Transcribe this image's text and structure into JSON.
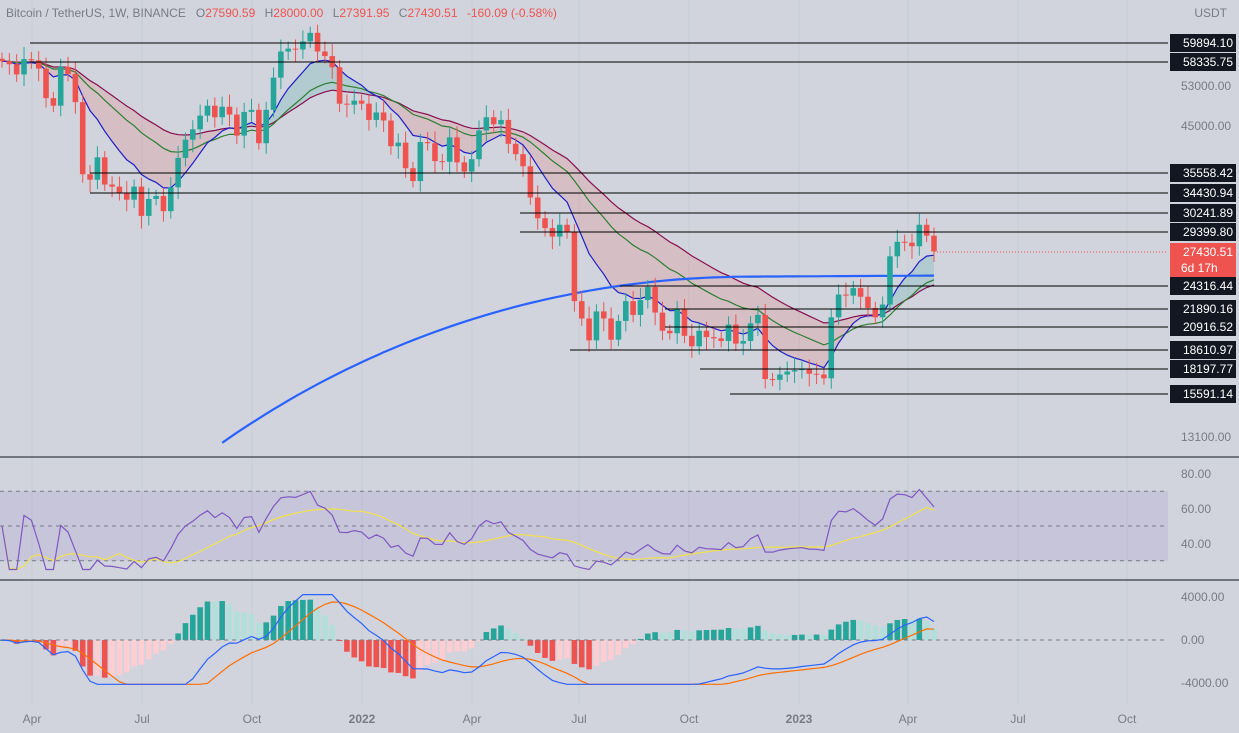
{
  "header": {
    "symbol": "Bitcoin / TetherUS, 1W, BINANCE",
    "o_label": "O",
    "o": "27590.59",
    "h_label": "H",
    "h": "28000.00",
    "l_label": "L",
    "l": "27391.95",
    "c_label": "C",
    "c": "27430.51",
    "change": "-160.09 (-0.58%)"
  },
  "currency": "USDT",
  "colors": {
    "up": "#26a69a",
    "down": "#ef5350",
    "ma200": "#2962ff",
    "ema_fast": "#1e1ec8",
    "ema_mid": "#2e7d32",
    "ema_slow": "#880e4f",
    "rsi": "#7e57c2",
    "rsi_ma": "#f2e14b",
    "macd": "#2962ff",
    "signal": "#ff6d00",
    "level": "#000000",
    "last_price": "#ef5350"
  },
  "chart_data": [
    {
      "type": "candlestick",
      "title": "",
      "y_ticks": [
        "53000.00",
        "45000.00",
        "13100.00"
      ],
      "x_ticks": [
        "Apr",
        "Jul",
        "Oct",
        "2022",
        "Apr",
        "Jul",
        "Oct",
        "2023",
        "Apr",
        "Jul",
        "Oct"
      ],
      "levels": [
        {
          "label": "59894.10",
          "value": 59894.1
        },
        {
          "label": "58335.75",
          "value": 58335.75
        },
        {
          "label": "35558.42",
          "value": 35558.42
        },
        {
          "label": "34430.94",
          "value": 34430.94
        },
        {
          "label": "30241.89",
          "value": 30241.89
        },
        {
          "label": "29399.80",
          "value": 29399.8
        },
        {
          "label": "24316.44",
          "value": 24316.44
        },
        {
          "label": "21890.16",
          "value": 21890.16
        },
        {
          "label": "20916.52",
          "value": 20916.52
        },
        {
          "label": "18610.97",
          "value": 18610.97
        },
        {
          "label": "18197.77",
          "value": 18197.77
        },
        {
          "label": "15591.14",
          "value": 15591.14
        }
      ],
      "last_price": {
        "label": "27430.51",
        "countdown": "6d 17h",
        "value": 27430.51
      },
      "closes": [
        58500,
        57800,
        55500,
        59000,
        58700,
        56800,
        50500,
        49000,
        57200,
        55600,
        49700,
        37300,
        36500,
        39900,
        35800,
        35500,
        34600,
        33700,
        35500,
        31600,
        33800,
        34200,
        32200,
        35400,
        39800,
        42800,
        44600,
        47100,
        49000,
        46800,
        48800,
        47300,
        43500,
        47800,
        48200,
        42200,
        48200,
        54800,
        60800,
        61500,
        61300,
        63300,
        65500,
        60800,
        59700,
        57100,
        49400,
        49200,
        50000,
        49400,
        46300,
        47700,
        46200,
        41700,
        42300,
        38200,
        36300,
        42400,
        42200,
        39300,
        39200,
        43200,
        39100,
        37700,
        39600,
        44400,
        46800,
        45500,
        46300,
        42100,
        40400,
        38500,
        34000,
        31300,
        30100,
        29100,
        30500,
        29600,
        22500,
        21000,
        19250,
        21600,
        21000,
        19300,
        20800,
        22500,
        21300,
        22600,
        23800,
        21500,
        20000,
        19800,
        21800,
        19600,
        18800,
        20000,
        19500,
        19400,
        19200,
        20500,
        19000,
        19200,
        20600,
        21300,
        16500,
        16450,
        16800,
        17000,
        17100,
        17200,
        16850,
        16800,
        16550,
        21100,
        23100,
        23000,
        23700,
        22900,
        21900,
        21100,
        22200,
        26900,
        28500,
        28400,
        28000,
        30500,
        29200,
        27430
      ],
      "ma200_start_value": 12800,
      "ma200_end_value": 24800
    },
    {
      "type": "line",
      "title": "",
      "y_ticks": [
        "80.00",
        "60.00",
        "40.00"
      ],
      "band": [
        30,
        70
      ],
      "rsi_end": 61,
      "rsi_ma_end": 59
    },
    {
      "type": "bar",
      "title": "",
      "y_ticks": [
        "4000.00",
        "0.00",
        "-4000.00"
      ],
      "macd_end": 1700,
      "signal_end": 1000
    }
  ]
}
